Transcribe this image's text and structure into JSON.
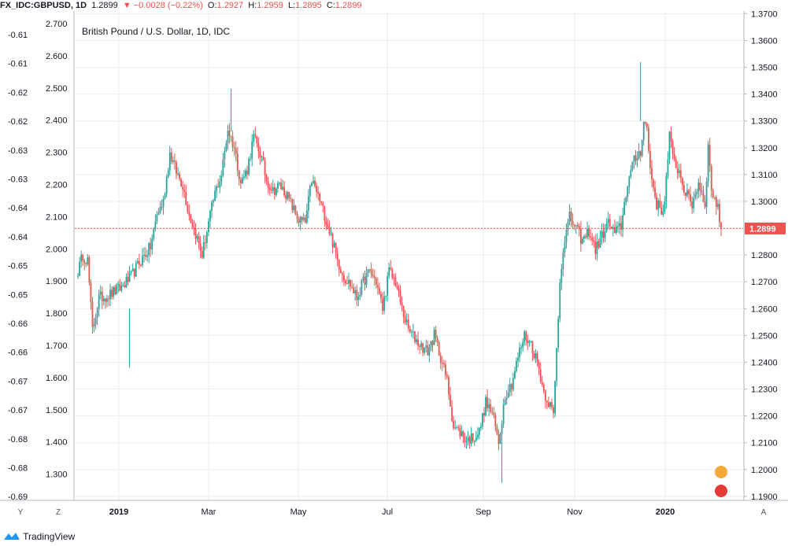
{
  "header": {
    "symbol": "FX_IDC:GBPUSD, 1D",
    "last": "1.2899",
    "change": "▼ −0.0028 (−0.22%)",
    "o_label": "O:",
    "o_val": "1.2927",
    "h_label": "H:",
    "h_val": "1.2959",
    "l_label": "L:",
    "l_val": "1.2895",
    "c_label": "C:",
    "c_val": "1.2899"
  },
  "footer": {
    "brand": "TradingView",
    "btn_y": "Y",
    "btn_z": "Z",
    "btn_a": "A"
  },
  "colors": {
    "up": "#26a69a",
    "down": "#ef5350",
    "price_line": "#ef5350",
    "grid": "#eceef2"
  },
  "icons": [
    "tradingview-logo-icon",
    "uk-flag-icon",
    "us-flag-icon"
  ],
  "chart_data": {
    "type": "candlestick",
    "title": "British Pound / U.S. Dollar, 1D, IDC",
    "right_axis": {
      "ticks": [
        "1.3700",
        "1.3600",
        "1.3500",
        "1.3400",
        "1.3300",
        "1.3200",
        "1.3100",
        "1.3000",
        "1.2900",
        "1.2800",
        "1.2700",
        "1.2600",
        "1.2500",
        "1.2400",
        "1.2300",
        "1.2200",
        "1.2100",
        "1.2000",
        "1.1900"
      ],
      "range": [
        1.1885,
        1.371
      ]
    },
    "inner_axis": {
      "ticks": [
        "2.700",
        "2.600",
        "2.500",
        "2.400",
        "2.300",
        "2.200",
        "2.100",
        "2.000",
        "1.900",
        "1.800",
        "1.700",
        "1.600",
        "1.500",
        "1.400",
        "1.300"
      ]
    },
    "left_axis": {
      "ticks": [
        "-0.61",
        "-0.61",
        "-0.62",
        "-0.62",
        "-0.63",
        "-0.63",
        "-0.64",
        "-0.64",
        "-0.65",
        "-0.65",
        "-0.66",
        "-0.66",
        "-0.67",
        "-0.67",
        "-0.68",
        "-0.68",
        "-0.69"
      ]
    },
    "x_ticks": [
      "2019",
      "Mar",
      "May",
      "Jul",
      "Sep",
      "Nov",
      "2020"
    ],
    "last_price": 1.2899,
    "last_price_label": "1.2899",
    "anchors": [
      [
        0,
        1.272
      ],
      [
        4,
        1.28
      ],
      [
        7,
        1.278
      ],
      [
        10,
        1.252
      ],
      [
        14,
        1.264
      ],
      [
        20,
        1.265
      ],
      [
        28,
        1.268
      ],
      [
        34,
        1.272
      ],
      [
        40,
        1.278
      ],
      [
        46,
        1.283
      ],
      [
        50,
        1.295
      ],
      [
        54,
        1.3
      ],
      [
        58,
        1.318
      ],
      [
        62,
        1.311
      ],
      [
        66,
        1.306
      ],
      [
        70,
        1.295
      ],
      [
        74,
        1.288
      ],
      [
        78,
        1.28
      ],
      [
        82,
        1.292
      ],
      [
        86,
        1.303
      ],
      [
        90,
        1.31
      ],
      [
        94,
        1.327
      ],
      [
        98,
        1.32
      ],
      [
        102,
        1.307
      ],
      [
        106,
        1.312
      ],
      [
        110,
        1.324
      ],
      [
        114,
        1.318
      ],
      [
        118,
        1.308
      ],
      [
        122,
        1.304
      ],
      [
        126,
        1.306
      ],
      [
        130,
        1.303
      ],
      [
        134,
        1.298
      ],
      [
        138,
        1.293
      ],
      [
        142,
        1.292
      ],
      [
        146,
        1.308
      ],
      [
        150,
        1.302
      ],
      [
        154,
        1.295
      ],
      [
        158,
        1.287
      ],
      [
        162,
        1.278
      ],
      [
        166,
        1.272
      ],
      [
        170,
        1.269
      ],
      [
        174,
        1.264
      ],
      [
        178,
        1.27
      ],
      [
        182,
        1.274
      ],
      [
        186,
        1.27
      ],
      [
        190,
        1.26
      ],
      [
        194,
        1.274
      ],
      [
        198,
        1.27
      ],
      [
        202,
        1.26
      ],
      [
        206,
        1.252
      ],
      [
        210,
        1.249
      ],
      [
        214,
        1.246
      ],
      [
        218,
        1.244
      ],
      [
        222,
        1.25
      ],
      [
        226,
        1.242
      ],
      [
        230,
        1.233
      ],
      [
        234,
        1.216
      ],
      [
        238,
        1.214
      ],
      [
        242,
        1.211
      ],
      [
        246,
        1.212
      ],
      [
        250,
        1.214
      ],
      [
        254,
        1.225
      ],
      [
        258,
        1.221
      ],
      [
        262,
        1.21
      ],
      [
        266,
        1.228
      ],
      [
        270,
        1.232
      ],
      [
        274,
        1.242
      ],
      [
        278,
        1.25
      ],
      [
        282,
        1.247
      ],
      [
        286,
        1.24
      ],
      [
        290,
        1.229
      ],
      [
        294,
        1.224
      ],
      [
        296,
        1.22
      ],
      [
        298,
        1.245
      ],
      [
        300,
        1.27
      ],
      [
        302,
        1.283
      ],
      [
        306,
        1.294
      ],
      [
        310,
        1.29
      ],
      [
        314,
        1.285
      ],
      [
        318,
        1.289
      ],
      [
        322,
        1.282
      ],
      [
        326,
        1.287
      ],
      [
        330,
        1.292
      ],
      [
        334,
        1.288
      ],
      [
        338,
        1.291
      ],
      [
        342,
        1.307
      ],
      [
        346,
        1.315
      ],
      [
        350,
        1.319
      ],
      [
        352,
        1.33
      ],
      [
        354,
        1.327
      ],
      [
        356,
        1.312
      ],
      [
        360,
        1.299
      ],
      [
        364,
        1.296
      ],
      [
        366,
        1.308
      ],
      [
        368,
        1.325
      ],
      [
        370,
        1.316
      ],
      [
        374,
        1.311
      ],
      [
        378,
        1.303
      ],
      [
        382,
        1.299
      ],
      [
        386,
        1.307
      ],
      [
        390,
        1.299
      ],
      [
        392,
        1.32
      ],
      [
        394,
        1.305
      ],
      [
        398,
        1.297
      ],
      [
        400,
        1.2899
      ]
    ]
  }
}
